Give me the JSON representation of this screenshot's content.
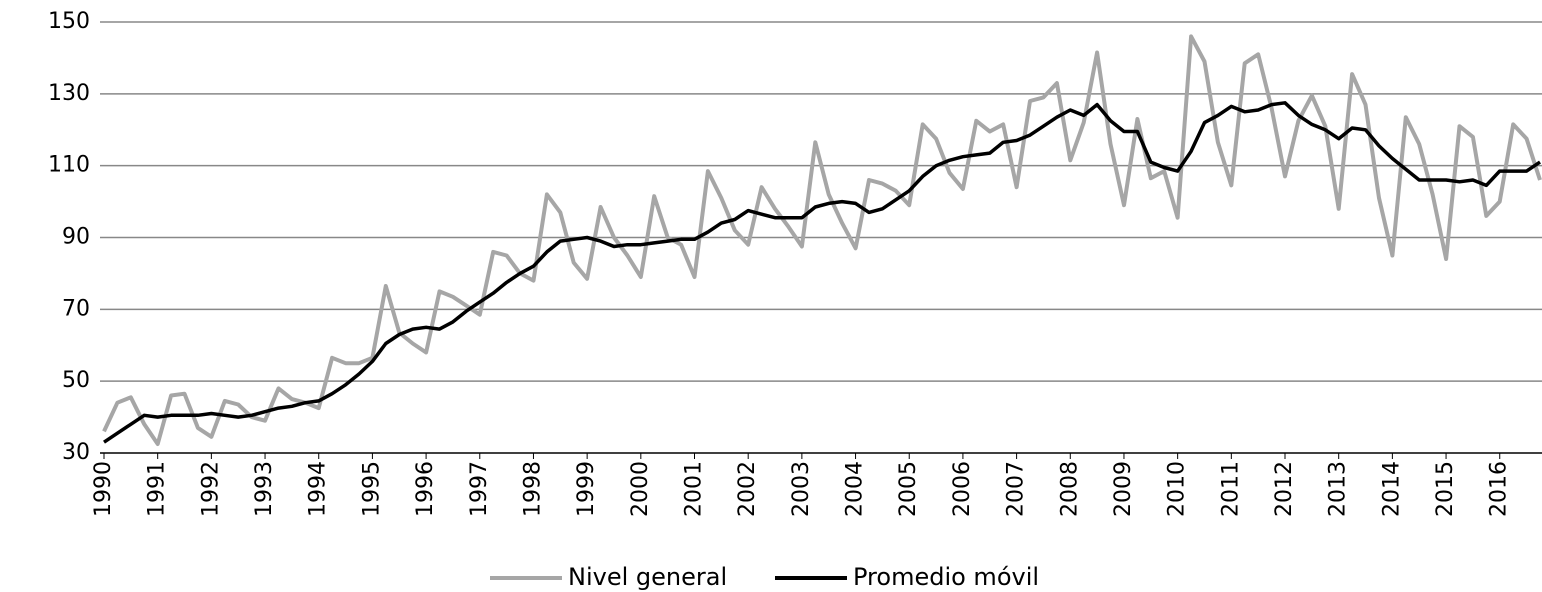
{
  "chart_data": {
    "type": "line",
    "categories": [
      "1990",
      null,
      null,
      null,
      "1991",
      null,
      null,
      null,
      "1992",
      null,
      null,
      null,
      "1993",
      null,
      null,
      null,
      "1994",
      null,
      null,
      null,
      "1995",
      null,
      null,
      null,
      "1996",
      null,
      null,
      null,
      "1997",
      null,
      null,
      null,
      "1998",
      null,
      null,
      null,
      "1999",
      null,
      null,
      null,
      "2000",
      null,
      null,
      null,
      "2001",
      null,
      null,
      null,
      "2002",
      null,
      null,
      null,
      "2003",
      null,
      null,
      null,
      "2004",
      null,
      null,
      null,
      "2005",
      null,
      null,
      null,
      "2006",
      null,
      null,
      null,
      "2007",
      null,
      null,
      null,
      "2008",
      null,
      null,
      null,
      "2009",
      null,
      null,
      null,
      "2010",
      null,
      null,
      null,
      "2011",
      null,
      null,
      null,
      "2012",
      null,
      null,
      null,
      "2013",
      null,
      null,
      null,
      "2014",
      null,
      null,
      null,
      "2015",
      null,
      null,
      null,
      "2016",
      null,
      null,
      null
    ],
    "series": [
      {
        "name": "Nivel general",
        "color": "#a6a6a6",
        "values": [
          36,
          44,
          45.5,
          38,
          32.5,
          46,
          46.5,
          37,
          34.5,
          44.5,
          43.5,
          40,
          39,
          48,
          45,
          44,
          42.5,
          56.5,
          55,
          55,
          56.5,
          76.5,
          63.5,
          60.5,
          58,
          75,
          73.5,
          71,
          68.5,
          86,
          85,
          80,
          78,
          102,
          97,
          83,
          78.5,
          98.5,
          90,
          85,
          79,
          101.5,
          90,
          88,
          79,
          108.5,
          101,
          92,
          88,
          104,
          98,
          93,
          87.5,
          116.5,
          102,
          94,
          87,
          106,
          105,
          103,
          99,
          121.5,
          117.5,
          108,
          103.5,
          122.5,
          119.5,
          121.5,
          104,
          128,
          129,
          133,
          111.5,
          122,
          141.5,
          116,
          99,
          123,
          106.5,
          108.5,
          95.5,
          146,
          139,
          116.5,
          104.5,
          138.5,
          141,
          126,
          107,
          122.5,
          129.5,
          121,
          98,
          135.5,
          127,
          101,
          85,
          123.5,
          116,
          102,
          84,
          121,
          118,
          96,
          100,
          121.5,
          117.5,
          106
        ]
      },
      {
        "name": "Promedio móvil",
        "color": "#000000",
        "values": [
          33,
          35.5,
          38,
          40.5,
          40,
          40.5,
          40.5,
          40.5,
          41,
          40.5,
          40,
          40.5,
          41.5,
          42.5,
          43,
          44,
          44.5,
          46.5,
          49,
          52,
          55.5,
          60.5,
          63,
          64.5,
          65,
          64.5,
          66.5,
          69.5,
          72,
          74.5,
          77.5,
          80,
          82,
          86,
          89,
          89.5,
          90,
          89,
          87.5,
          88,
          88,
          88.5,
          89,
          89.5,
          89.5,
          91.5,
          94,
          95,
          97.5,
          96.5,
          95.5,
          95.5,
          95.5,
          98.5,
          99.5,
          100,
          99.5,
          97,
          98,
          100.5,
          103,
          107,
          110,
          111.5,
          112.5,
          113,
          113.5,
          116.5,
          117,
          118.5,
          121,
          123.5,
          125.5,
          124,
          127,
          122.5,
          119.5,
          119.5,
          111,
          109.5,
          108.5,
          114,
          122,
          124,
          126.5,
          125,
          125.5,
          127,
          127.5,
          124,
          121.5,
          120,
          117.5,
          120.5,
          120,
          115.5,
          112,
          109,
          106,
          106,
          106,
          105.5,
          106,
          104.5,
          108.5,
          108.5,
          108.5,
          111
        ]
      }
    ],
    "ylim": [
      30,
      150
    ],
    "yticks": [
      30,
      50,
      70,
      90,
      110,
      130,
      150
    ],
    "grid": true,
    "legend": "bottom"
  }
}
